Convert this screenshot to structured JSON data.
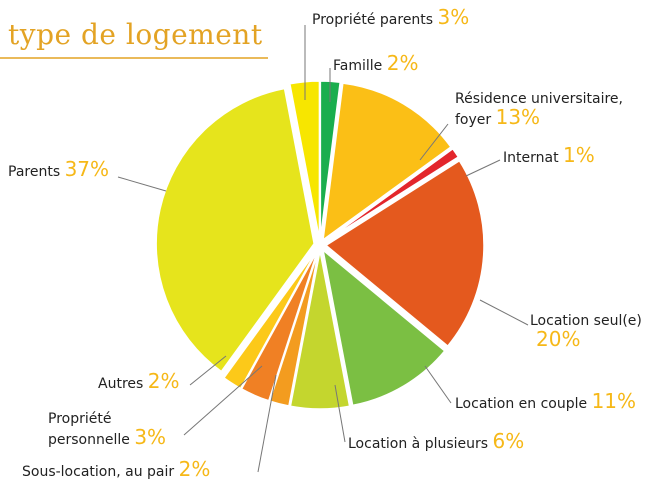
{
  "chart_data": {
    "type": "pie",
    "title": "type de logement",
    "categories": [
      "Propriété parents",
      "Famille",
      "Résidence universitaire, foyer",
      "Internat",
      "Location seul(e)",
      "Location en couple",
      "Location à plusieurs",
      "Sous-location, au pair",
      "Propriété personnelle",
      "Autres",
      "Parents"
    ],
    "values": [
      3,
      2,
      13,
      1,
      20,
      11,
      6,
      2,
      3,
      2,
      37
    ],
    "value_labels": [
      "3%",
      "2%",
      "13%",
      "1%",
      "20%",
      "11%",
      "6%",
      "2%",
      "3%",
      "2%",
      "37%"
    ],
    "colors": [
      "#f7e600",
      "#1aae4e",
      "#fbbf16",
      "#e3262c",
      "#e4591e",
      "#7bbf43",
      "#c4d62e",
      "#f39c1f",
      "#f08024",
      "#fcc919",
      "#e6e41c"
    ]
  }
}
